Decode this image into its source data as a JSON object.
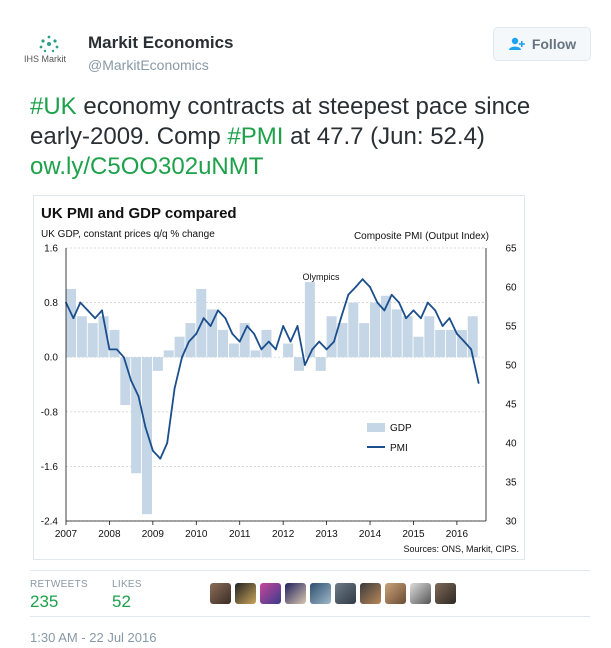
{
  "user": {
    "name": "Markit Economics",
    "handle": "@MarkitEconomics",
    "logo_text": "IHS Markit",
    "follow_label": "Follow"
  },
  "tweet": {
    "hashtag1": "#UK",
    "text1": " economy contracts at steepest pace since early-2009. Comp ",
    "hashtag2": "#PMI",
    "text2": " at 47.7 (Jun: 52.4)",
    "link": "ow.ly/C5OO302uNMT"
  },
  "stats": {
    "retweets_label": "RETWEETS",
    "retweets": "235",
    "likes_label": "LIKES",
    "likes": "52"
  },
  "timestamp": "1:30 AM - 22 Jul 2016",
  "colors": {
    "accent": "#1da14a",
    "gdp_bar": "#c5d6e6",
    "pmi_line": "#1b4f8c"
  },
  "chart_data": {
    "type": "bar+line",
    "title": "UK PMI and GDP compared",
    "ylabel_left": "UK GDP, constant prices q/q % change",
    "ylabel_right": "Composite PMI (Output Index)",
    "source": "Sources: ONS, Markit, CIPS.",
    "annotation": "Olympics",
    "legend": [
      "GDP",
      "PMI"
    ],
    "legend_position": "bottom-right",
    "left_ticks": [
      "1.6",
      "0.8",
      "0.0",
      "-0.8",
      "-1.6",
      "-2.4"
    ],
    "right_ticks": [
      "65",
      "60",
      "55",
      "50",
      "45",
      "40",
      "35",
      "30"
    ],
    "x_ticks": [
      "2007",
      "2008",
      "2009",
      "2010",
      "2011",
      "2012",
      "2013",
      "2014",
      "2015",
      "2016"
    ],
    "left_ylim": [
      -2.4,
      1.6
    ],
    "right_ylim": [
      30,
      65
    ],
    "gdp": {
      "name": "GDP",
      "x": [
        2007.0,
        2007.25,
        2007.5,
        2007.75,
        2008.0,
        2008.25,
        2008.5,
        2008.75,
        2009.0,
        2009.25,
        2009.5,
        2009.75,
        2010.0,
        2010.25,
        2010.5,
        2010.75,
        2011.0,
        2011.25,
        2011.5,
        2011.75,
        2012.0,
        2012.25,
        2012.5,
        2012.75,
        2013.0,
        2013.25,
        2013.5,
        2013.75,
        2014.0,
        2014.25,
        2014.5,
        2014.75,
        2015.0,
        2015.25,
        2015.5,
        2015.75,
        2016.0,
        2016.25
      ],
      "values": [
        1.0,
        0.6,
        0.5,
        0.6,
        0.4,
        -0.7,
        -1.7,
        -2.3,
        -0.2,
        0.1,
        0.3,
        0.5,
        1.0,
        0.7,
        0.4,
        0.2,
        0.5,
        0.1,
        0.4,
        0.0,
        0.2,
        -0.2,
        1.1,
        -0.2,
        0.6,
        0.5,
        0.8,
        0.5,
        0.8,
        0.9,
        0.7,
        0.6,
        0.3,
        0.6,
        0.4,
        0.4,
        0.4,
        0.6
      ]
    },
    "pmi": {
      "name": "PMI",
      "x": [
        2007.0,
        2007.17,
        2007.33,
        2007.5,
        2007.67,
        2007.83,
        2008.0,
        2008.17,
        2008.33,
        2008.5,
        2008.67,
        2008.83,
        2009.0,
        2009.17,
        2009.33,
        2009.5,
        2009.67,
        2009.83,
        2010.0,
        2010.17,
        2010.33,
        2010.5,
        2010.67,
        2010.83,
        2011.0,
        2011.17,
        2011.33,
        2011.5,
        2011.67,
        2011.83,
        2012.0,
        2012.17,
        2012.33,
        2012.5,
        2012.67,
        2012.83,
        2013.0,
        2013.17,
        2013.33,
        2013.5,
        2013.67,
        2013.83,
        2014.0,
        2014.17,
        2014.33,
        2014.5,
        2014.67,
        2014.83,
        2015.0,
        2015.17,
        2015.33,
        2015.5,
        2015.67,
        2015.83,
        2016.0,
        2016.17,
        2016.33,
        2016.5
      ],
      "values": [
        58,
        56,
        58,
        57,
        56,
        57,
        52,
        52,
        51,
        48,
        46,
        42,
        39,
        38,
        40,
        47,
        51,
        53,
        54,
        56,
        55,
        57,
        56,
        54,
        53,
        55,
        54,
        52,
        53,
        52,
        55,
        53,
        55,
        50,
        52,
        53,
        52,
        53,
        56,
        59,
        60,
        61,
        60,
        58,
        57,
        59,
        58,
        56,
        57,
        56,
        58,
        57,
        55,
        56,
        54,
        53,
        52,
        47.7
      ]
    }
  }
}
